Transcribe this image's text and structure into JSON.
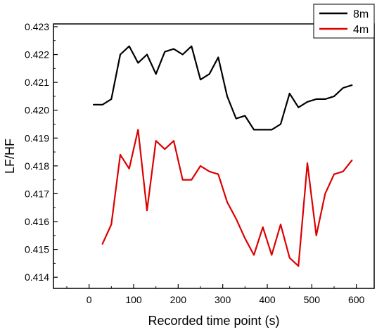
{
  "chart_data": {
    "type": "line",
    "title": "",
    "xlabel": "Recorded time point (s)",
    "ylabel": "LF/HF",
    "xlim": [
      -80,
      640
    ],
    "ylim": [
      0.4136,
      0.4231
    ],
    "x_ticks": [
      0,
      100,
      200,
      300,
      400,
      500,
      600
    ],
    "y_ticks": [
      0.414,
      0.415,
      0.416,
      0.417,
      0.418,
      0.419,
      0.42,
      0.421,
      0.422,
      0.423
    ],
    "y_tick_labels": [
      "0.414",
      "0.415",
      "0.416",
      "0.417",
      "0.418",
      "0.419",
      "0.420",
      "0.421",
      "0.422",
      "0.423"
    ],
    "grid": false,
    "legend_position": "top-right",
    "series": [
      {
        "name": "8m",
        "color": "#000000",
        "x": [
          10,
          30,
          50,
          70,
          90,
          110,
          130,
          150,
          170,
          190,
          210,
          230,
          250,
          270,
          290,
          310,
          330,
          350,
          370,
          390,
          410,
          430,
          450,
          470,
          490,
          510,
          530,
          550,
          570,
          590
        ],
        "values": [
          0.4202,
          0.4202,
          0.4204,
          0.422,
          0.4223,
          0.4217,
          0.422,
          0.4213,
          0.4221,
          0.4222,
          0.422,
          0.4223,
          0.4211,
          0.4213,
          0.4219,
          0.4205,
          0.4197,
          0.4198,
          0.4193,
          0.4193,
          0.4193,
          0.4195,
          0.4206,
          0.4201,
          0.4203,
          0.4204,
          0.4204,
          0.4205,
          0.4208,
          0.4209
        ]
      },
      {
        "name": "4m",
        "color": "#dd0000",
        "x": [
          30,
          50,
          70,
          90,
          110,
          130,
          150,
          170,
          190,
          210,
          230,
          250,
          270,
          290,
          310,
          330,
          350,
          370,
          390,
          410,
          430,
          450,
          470,
          490,
          510,
          530,
          550,
          570,
          590
        ],
        "values": [
          0.4152,
          0.4159,
          0.4184,
          0.4179,
          0.4193,
          0.4164,
          0.4189,
          0.4186,
          0.4189,
          0.4175,
          0.4175,
          0.418,
          0.4178,
          0.4177,
          0.4167,
          0.4161,
          0.4154,
          0.4148,
          0.4158,
          0.4148,
          0.4159,
          0.4147,
          0.4144,
          0.4181,
          0.4155,
          0.417,
          0.4177,
          0.4178,
          0.4182
        ]
      }
    ]
  }
}
